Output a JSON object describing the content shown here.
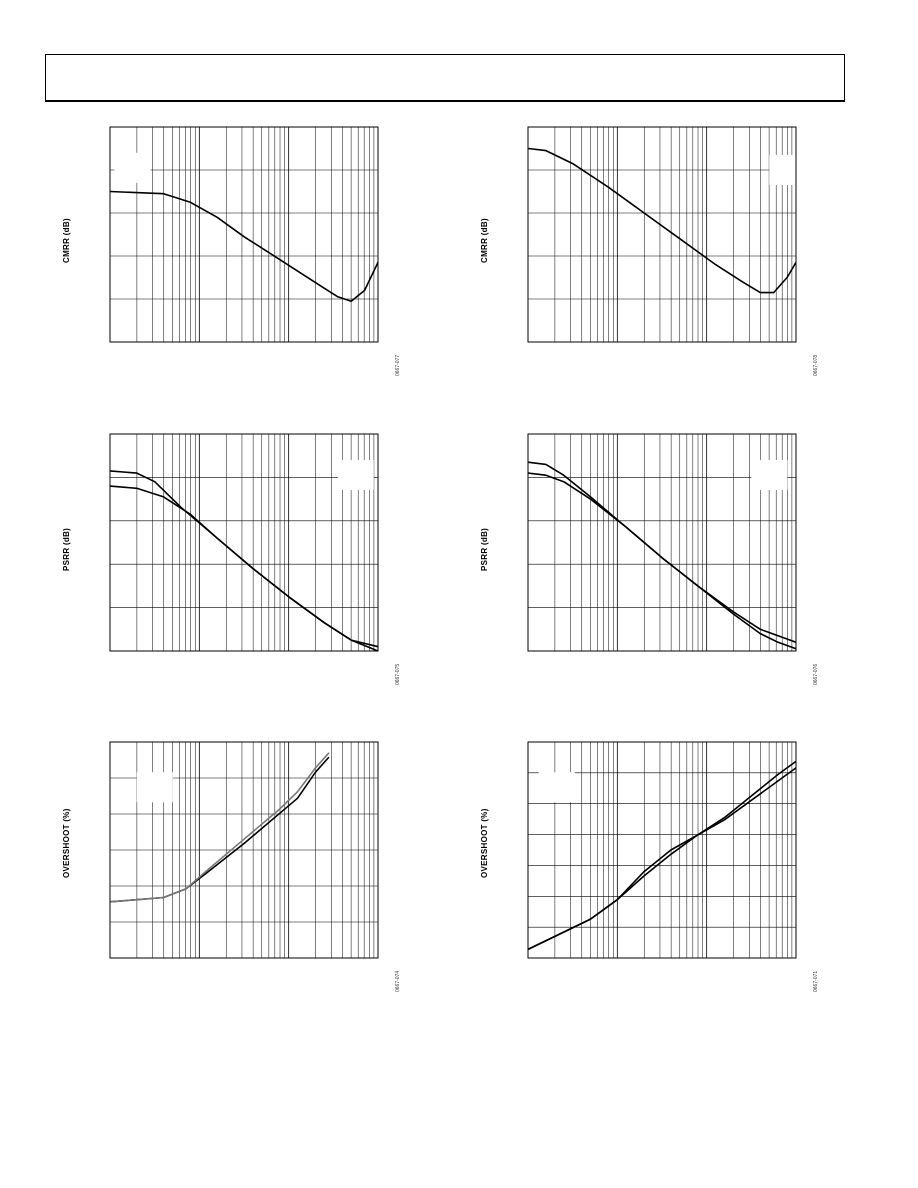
{
  "page": {
    "header_text": ""
  },
  "chart_data": [
    {
      "type": "line",
      "id": "p1",
      "ylabel": "CMRR (dB)",
      "figure_code": "0667-077",
      "xscale": "log",
      "xdecades": 3,
      "ydivs": 5,
      "grid": true,
      "legend_box": [
        0.05,
        0.12
      ],
      "series": [
        {
          "color": "#000",
          "points": [
            [
              0,
              0.3
            ],
            [
              0.6,
              0.31
            ],
            [
              0.9,
              0.35
            ],
            [
              1.2,
              0.42
            ],
            [
              1.5,
              0.51
            ],
            [
              1.8,
              0.59
            ],
            [
              2.1,
              0.67
            ],
            [
              2.4,
              0.75
            ],
            [
              2.55,
              0.79
            ],
            [
              2.7,
              0.81
            ],
            [
              2.85,
              0.76
            ],
            [
              3,
              0.63
            ]
          ]
        }
      ]
    },
    {
      "type": "line",
      "id": "p2",
      "ylabel": "CMRR (dB)",
      "figure_code": "0667-078",
      "xscale": "log",
      "xdecades": 3,
      "ydivs": 5,
      "grid": true,
      "legend_box": [
        2.7,
        0.13
      ],
      "series": [
        {
          "color": "#000",
          "points": [
            [
              0,
              0.1
            ],
            [
              0.2,
              0.11
            ],
            [
              0.5,
              0.17
            ],
            [
              0.9,
              0.28
            ],
            [
              1.3,
              0.4
            ],
            [
              1.7,
              0.52
            ],
            [
              2.1,
              0.64
            ],
            [
              2.4,
              0.72
            ],
            [
              2.6,
              0.77
            ],
            [
              2.75,
              0.77
            ],
            [
              2.9,
              0.7
            ],
            [
              3,
              0.63
            ]
          ]
        }
      ]
    },
    {
      "type": "line",
      "id": "p3",
      "ylabel": "PSRR (dB)",
      "figure_code": "0667-075",
      "xscale": "log",
      "xdecades": 3,
      "ydivs": 5,
      "grid": true,
      "legend_box": [
        2.55,
        0.12
      ],
      "series": [
        {
          "color": "#000",
          "points": [
            [
              0,
              0.17
            ],
            [
              0.3,
              0.18
            ],
            [
              0.5,
              0.22
            ],
            [
              0.8,
              0.34
            ],
            [
              1.2,
              0.48
            ],
            [
              1.6,
              0.62
            ],
            [
              2,
              0.75
            ],
            [
              2.4,
              0.87
            ],
            [
              2.7,
              0.95
            ],
            [
              3,
              1.0
            ]
          ]
        },
        {
          "color": "#000",
          "points": [
            [
              0,
              0.24
            ],
            [
              0.3,
              0.25
            ],
            [
              0.6,
              0.29
            ],
            [
              0.9,
              0.37
            ],
            [
              1.2,
              0.48
            ],
            [
              1.6,
              0.62
            ],
            [
              2,
              0.75
            ],
            [
              2.4,
              0.87
            ],
            [
              2.7,
              0.95
            ],
            [
              3,
              0.98
            ]
          ]
        }
      ]
    },
    {
      "type": "line",
      "id": "p4",
      "ylabel": "PSRR (dB)",
      "figure_code": "0667-076",
      "xscale": "log",
      "xdecades": 3,
      "ydivs": 5,
      "grid": true,
      "legend_box": [
        2.5,
        0.12
      ],
      "series": [
        {
          "color": "#000",
          "points": [
            [
              0,
              0.13
            ],
            [
              0.2,
              0.14
            ],
            [
              0.4,
              0.19
            ],
            [
              0.7,
              0.29
            ],
            [
              1.1,
              0.43
            ],
            [
              1.5,
              0.57
            ],
            [
              1.9,
              0.7
            ],
            [
              2.3,
              0.83
            ],
            [
              2.6,
              0.92
            ],
            [
              2.8,
              0.96
            ],
            [
              3,
              0.99
            ]
          ]
        },
        {
          "color": "#000",
          "points": [
            [
              0,
              0.18
            ],
            [
              0.2,
              0.19
            ],
            [
              0.4,
              0.22
            ],
            [
              0.7,
              0.3
            ],
            [
              1.1,
              0.43
            ],
            [
              1.5,
              0.57
            ],
            [
              1.9,
              0.7
            ],
            [
              2.3,
              0.82
            ],
            [
              2.6,
              0.9
            ],
            [
              2.8,
              0.93
            ],
            [
              3,
              0.96
            ]
          ]
        }
      ]
    },
    {
      "type": "line",
      "id": "p5",
      "ylabel": "OVERSHOOT (%)",
      "figure_code": "0667-074",
      "xscale": "log",
      "xdecades": 3,
      "ydivs": 6,
      "grid": true,
      "legend_box": [
        0.3,
        0.14
      ],
      "series": [
        {
          "color": "#000",
          "points": [
            [
              0,
              0.74
            ],
            [
              0.3,
              0.73
            ],
            [
              0.6,
              0.72
            ],
            [
              0.85,
              0.68
            ],
            [
              1.1,
              0.6
            ],
            [
              1.5,
              0.47
            ],
            [
              1.9,
              0.33
            ],
            [
              2.1,
              0.26
            ],
            [
              2.3,
              0.14
            ],
            [
              2.45,
              0.07
            ]
          ]
        },
        {
          "color": "#777",
          "points": [
            [
              0,
              0.74
            ],
            [
              0.3,
              0.73
            ],
            [
              0.6,
              0.72
            ],
            [
              0.85,
              0.68
            ],
            [
              1.1,
              0.59
            ],
            [
              1.5,
              0.45
            ],
            [
              1.9,
              0.31
            ],
            [
              2.1,
              0.23
            ],
            [
              2.3,
              0.12
            ],
            [
              2.45,
              0.05
            ]
          ]
        }
      ]
    },
    {
      "type": "line",
      "id": "p6",
      "ylabel": "OVERSHOOT (%)",
      "figure_code": "0667-071",
      "xscale": "log",
      "xdecades": 3,
      "ydivs": 7,
      "grid": true,
      "legend_box": [
        0.12,
        0.14
      ],
      "series": [
        {
          "color": "#000",
          "points": [
            [
              0,
              0.96
            ],
            [
              0.4,
              0.88
            ],
            [
              0.7,
              0.82
            ],
            [
              1,
              0.73
            ],
            [
              1.3,
              0.62
            ],
            [
              1.6,
              0.52
            ],
            [
              1.9,
              0.43
            ],
            [
              2.2,
              0.36
            ],
            [
              2.5,
              0.27
            ],
            [
              2.8,
              0.18
            ],
            [
              3,
              0.12
            ]
          ]
        },
        {
          "color": "#000",
          "points": [
            [
              0,
              0.96
            ],
            [
              0.4,
              0.88
            ],
            [
              0.7,
              0.82
            ],
            [
              1,
              0.73
            ],
            [
              1.3,
              0.6
            ],
            [
              1.6,
              0.5
            ],
            [
              1.9,
              0.43
            ],
            [
              2.2,
              0.35
            ],
            [
              2.5,
              0.25
            ],
            [
              2.8,
              0.15
            ],
            [
              3,
              0.09
            ]
          ]
        }
      ]
    }
  ]
}
